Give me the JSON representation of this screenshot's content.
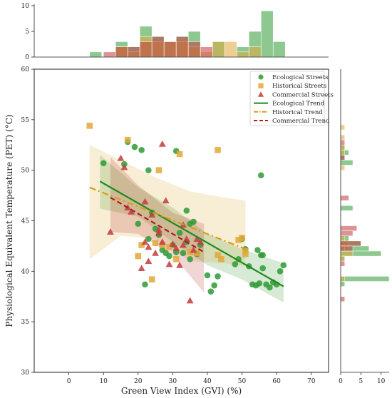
{
  "chart_data": {
    "type": "scatter",
    "xlabel": "Green View Index (GVI) (%)",
    "ylabel": "Physiological Equivalent Temperature (PET) (°C)",
    "xlim": [
      -10,
      75
    ],
    "ylim": [
      30,
      60
    ],
    "xticks": [
      0,
      10,
      20,
      30,
      40,
      50,
      60,
      70
    ],
    "yticks": [
      30,
      35,
      40,
      45,
      50,
      55,
      60
    ],
    "top_hist": {
      "ylim": [
        0,
        10
      ],
      "yticks": [
        0,
        5,
        10
      ],
      "bin_width": 3.5
    },
    "right_hist": {
      "xlim": [
        0,
        12
      ],
      "xticks": [
        0,
        5,
        10
      ],
      "bin_height": 0.5
    },
    "legend": {
      "placement": "top-right"
    },
    "colors": {
      "ecological": "#2e9b35",
      "historical": "#e0a83a",
      "commercial": "#c13c3c",
      "ecological_trend": "#1e8a1e",
      "historical_trend": "#d4a017",
      "commercial_trend": "#b01c1c"
    },
    "series": [
      {
        "name": "Ecological Streets",
        "marker": "circle",
        "color_key": "ecological",
        "points": [
          [
            10,
            50.7
          ],
          [
            16,
            50.6
          ],
          [
            17,
            52.8
          ],
          [
            19,
            52.3
          ],
          [
            21,
            52.0
          ],
          [
            23,
            50.0
          ],
          [
            31,
            51.9
          ],
          [
            34,
            46.0
          ],
          [
            35,
            44.7
          ],
          [
            55.5,
            49.5
          ],
          [
            22,
            38.7
          ],
          [
            24,
            45.8
          ],
          [
            25,
            44.2
          ],
          [
            26,
            43.6
          ],
          [
            27,
            42.1
          ],
          [
            28,
            41.8
          ],
          [
            29,
            41.5
          ],
          [
            30,
            42.6
          ],
          [
            31,
            41.9
          ],
          [
            32,
            43.8
          ],
          [
            33,
            41.8
          ],
          [
            34,
            42.9
          ],
          [
            35,
            41.2
          ],
          [
            38,
            42.6
          ],
          [
            40,
            39.6
          ],
          [
            41,
            38.0
          ],
          [
            42,
            38.6
          ],
          [
            43,
            39.5
          ],
          [
            49,
            41.2
          ],
          [
            50,
            43.2
          ],
          [
            51,
            42.2
          ],
          [
            52,
            40.5
          ],
          [
            53,
            38.7
          ],
          [
            54,
            38.6
          ],
          [
            55,
            38.8
          ],
          [
            55.5,
            41.6
          ],
          [
            54.5,
            42.1
          ],
          [
            56,
            41.6
          ],
          [
            56,
            40.3
          ],
          [
            57,
            38.7
          ],
          [
            58,
            38.4
          ],
          [
            59,
            38.9
          ],
          [
            60,
            38.7
          ],
          [
            61,
            40.0
          ],
          [
            62,
            40.6
          ],
          [
            23,
            43.2
          ],
          [
            20,
            44.7
          ],
          [
            36,
            44.9
          ],
          [
            48,
            40.7
          ],
          [
            37,
            41.7
          ]
        ]
      },
      {
        "name": "Historical Streets",
        "marker": "square",
        "color_key": "historical",
        "points": [
          [
            6,
            54.4
          ],
          [
            17,
            53.0
          ],
          [
            26,
            50.0
          ],
          [
            32,
            51.6
          ],
          [
            43,
            52.0
          ],
          [
            20,
            41.5
          ],
          [
            21,
            42.6
          ],
          [
            24,
            39.2
          ],
          [
            25,
            42.8
          ],
          [
            27,
            42.6
          ],
          [
            29,
            42.4
          ],
          [
            31,
            41.2
          ],
          [
            35,
            41.9
          ],
          [
            37,
            41.8
          ],
          [
            43,
            41.6
          ],
          [
            44,
            41.2
          ],
          [
            49,
            43.1
          ],
          [
            50,
            43.3
          ],
          [
            51,
            42.0
          ],
          [
            51,
            41.7
          ]
        ]
      },
      {
        "name": "Commercial Streets",
        "marker": "triangle",
        "color_key": "commercial",
        "points": [
          [
            15,
            51.2
          ],
          [
            16,
            50.3
          ],
          [
            27,
            52.6
          ],
          [
            12,
            43.9
          ],
          [
            18,
            45.9
          ],
          [
            22,
            42.9
          ],
          [
            22,
            46.9
          ],
          [
            23,
            42.4
          ],
          [
            24,
            45.6
          ],
          [
            25,
            41.8
          ],
          [
            26,
            44.1
          ],
          [
            27,
            42.9
          ],
          [
            28,
            47.0
          ],
          [
            29,
            40.7
          ],
          [
            30,
            42.7
          ],
          [
            31,
            42.3
          ],
          [
            32,
            40.6
          ],
          [
            33,
            44.6
          ],
          [
            34,
            43.2
          ],
          [
            35,
            37.1
          ],
          [
            36,
            42.1
          ],
          [
            37,
            43.2
          ],
          [
            38,
            42.9
          ],
          [
            17,
            46.3
          ],
          [
            23,
            41.0
          ],
          [
            21,
            40.3
          ],
          [
            26,
            43.8
          ],
          [
            33,
            42.6
          ]
        ]
      }
    ],
    "trends": [
      {
        "name": "Ecological Trend",
        "color_key": "ecological_trend",
        "style": "solid",
        "x": [
          9,
          62
        ],
        "y": [
          48.9,
          38.5
        ],
        "band": {
          "x": [
            9,
            20,
            30,
            40,
            50,
            62
          ],
          "lower": [
            46.2,
            45.4,
            42.9,
            40.6,
            39.2,
            36.9
          ],
          "upper": [
            51.5,
            48.3,
            46.3,
            43.7,
            42.2,
            40.8
          ]
        }
      },
      {
        "name": "Historical Trend",
        "color_key": "historical_trend",
        "style": "dashdot",
        "x": [
          6,
          51
        ],
        "y": [
          48.3,
          42.2
        ],
        "band": {
          "x": [
            6,
            15,
            25,
            35,
            45,
            51
          ],
          "lower": [
            41.2,
            43.5,
            43.2,
            41.0,
            40.8,
            40.5
          ],
          "upper": [
            52.5,
            51.0,
            49.3,
            47.9,
            47.3,
            47.0
          ]
        }
      },
      {
        "name": "Commercial Trend",
        "color_key": "commercial_trend",
        "style": "dashed",
        "x": [
          12,
          39
        ],
        "y": [
          47.3,
          41.9
        ],
        "band": {
          "x": [
            12,
            20,
            30,
            39
          ],
          "lower": [
            43.9,
            43.7,
            41.6,
            37.9
          ],
          "upper": [
            51.3,
            48.5,
            45.8,
            44.7
          ]
        }
      }
    ],
    "top_histograms": [
      {
        "series": "Ecological Streets",
        "color_key": "ecological",
        "bins": [
          [
            6,
            1
          ],
          [
            13.5,
            3
          ],
          [
            17,
            2
          ],
          [
            20.5,
            6
          ],
          [
            24,
            4
          ],
          [
            27.5,
            3
          ],
          [
            31,
            4
          ],
          [
            34.5,
            5
          ],
          [
            41.5,
            3
          ],
          [
            48.5,
            2
          ],
          [
            52,
            5
          ],
          [
            55.5,
            9
          ],
          [
            59,
            3
          ]
        ]
      },
      {
        "series": "Historical Streets",
        "color_key": "historical",
        "bins": [
          [
            13.5,
            2
          ],
          [
            17,
            1
          ],
          [
            20.5,
            4
          ],
          [
            24,
            3
          ],
          [
            27.5,
            3
          ],
          [
            31,
            3
          ],
          [
            34.5,
            2
          ],
          [
            38,
            1
          ],
          [
            41.5,
            3
          ],
          [
            45,
            3
          ],
          [
            48.5,
            1
          ],
          [
            52,
            2
          ]
        ]
      },
      {
        "series": "Commercial Streets",
        "color_key": "commercial",
        "bins": [
          [
            10,
            1
          ],
          [
            13.5,
            2
          ],
          [
            17,
            2
          ],
          [
            20.5,
            3
          ],
          [
            24,
            4
          ],
          [
            27.5,
            3
          ],
          [
            31,
            4
          ],
          [
            34.5,
            3
          ],
          [
            38,
            2
          ]
        ]
      }
    ],
    "right_histograms": [
      {
        "series": "Ecological Streets",
        "color_key": "ecological",
        "bins": [
          [
            52,
            1
          ],
          [
            51.5,
            2
          ],
          [
            51,
            1
          ],
          [
            50.5,
            3
          ],
          [
            46,
            3
          ],
          [
            43,
            2
          ],
          [
            42.5,
            5
          ],
          [
            42,
            7
          ],
          [
            41.5,
            10
          ],
          [
            41,
            1
          ],
          [
            39,
            12
          ],
          [
            38.5,
            1
          ]
        ]
      },
      {
        "series": "Historical Streets",
        "color_key": "historical",
        "bins": [
          [
            54,
            1
          ],
          [
            53,
            1
          ],
          [
            52,
            1
          ],
          [
            51.5,
            1
          ],
          [
            50,
            1
          ],
          [
            43,
            1
          ],
          [
            42.5,
            2
          ],
          [
            42,
            1
          ],
          [
            41.5,
            3
          ],
          [
            41,
            1
          ],
          [
            39,
            1
          ]
        ]
      },
      {
        "series": "Commercial Streets",
        "color_key": "commercial",
        "bins": [
          [
            52.5,
            1
          ],
          [
            51,
            1
          ],
          [
            47,
            2
          ],
          [
            44,
            4
          ],
          [
            43.5,
            3
          ],
          [
            42.5,
            5
          ],
          [
            42,
            3
          ],
          [
            40.5,
            1
          ],
          [
            37,
            1
          ]
        ]
      }
    ]
  }
}
